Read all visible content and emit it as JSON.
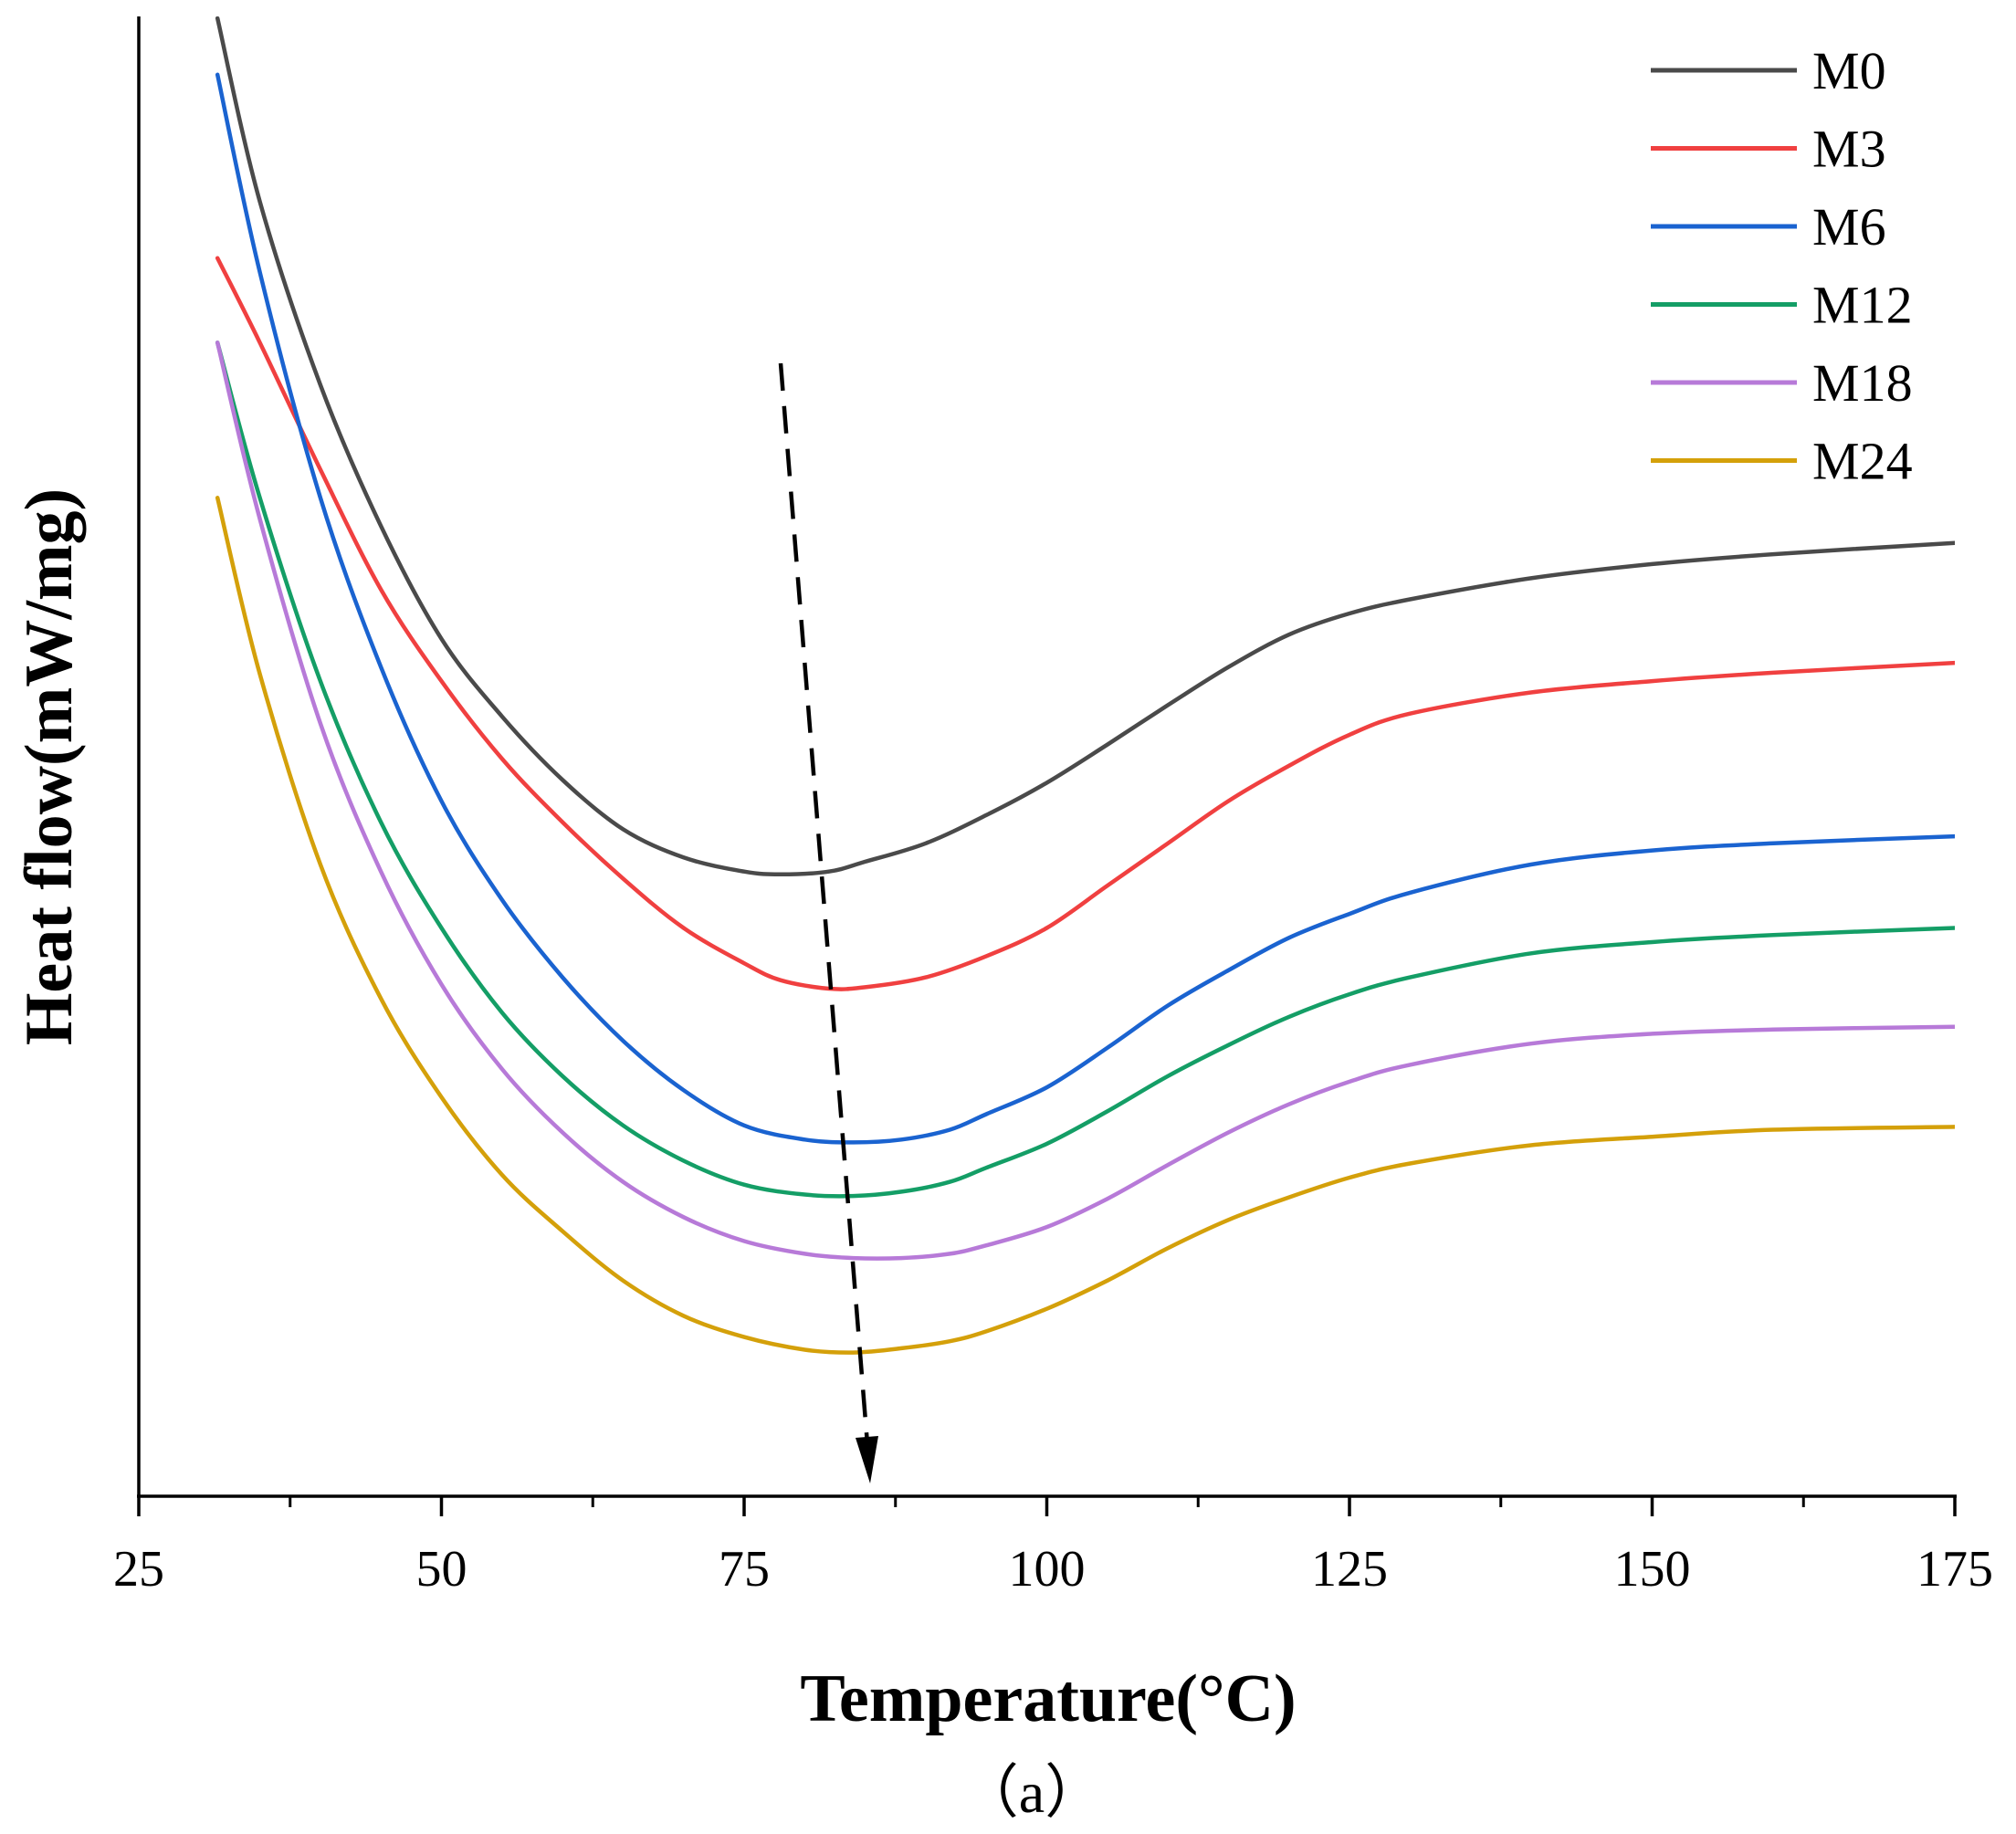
{
  "chart_data": {
    "type": "line",
    "title": "",
    "xlabel": "Temperature(°C)",
    "ylabel": "Heat flow(mW/mg)",
    "caption": "（a）",
    "xlim": [
      25,
      175
    ],
    "ylim": [
      0,
      100
    ],
    "xticks": [
      25,
      50,
      75,
      100,
      125,
      150,
      175
    ],
    "yticks": [],
    "grid": false,
    "legend_position": "top-right",
    "annotation": "dashed arrow pointing down-right through the curve minima",
    "series": [
      {
        "name": "M0",
        "color": "#4a4a4a",
        "x": [
          31.5,
          35,
          40,
          45,
          50,
          55,
          60,
          65,
          70,
          75,
          78,
          82,
          85,
          90,
          95,
          100,
          105,
          110,
          115,
          120,
          125,
          130,
          140,
          150,
          160,
          175
        ],
        "y": [
          100,
          87,
          74,
          64,
          56,
          50.5,
          46,
          42.5,
          40.5,
          39.5,
          39.3,
          39.5,
          40.2,
          41.5,
          43.5,
          45.8,
          48.5,
          51.3,
          54,
          56.3,
          57.8,
          58.8,
          60.3,
          61.3,
          62,
          62.8
        ]
      },
      {
        "name": "M3",
        "color": "#f04040",
        "x": [
          31.5,
          35,
          40,
          45,
          50,
          55,
          60,
          65,
          70,
          75,
          78,
          82,
          85,
          90,
          95,
          100,
          105,
          110,
          115,
          120,
          125,
          130,
          140,
          150,
          160,
          175
        ],
        "y": [
          83,
          77,
          68,
          59.5,
          53,
          47.5,
          43,
          39,
          35.5,
          33,
          31.8,
          31.2,
          31.3,
          32,
          33.5,
          35.5,
          38.5,
          41.5,
          44.5,
          47,
          49.2,
          50.7,
          52.2,
          53,
          53.6,
          54.3
        ]
      },
      {
        "name": "M6",
        "color": "#1a63d0",
        "x": [
          31.5,
          35,
          40,
          45,
          50,
          55,
          60,
          65,
          70,
          75,
          80,
          84,
          88,
          92,
          95,
          100,
          105,
          110,
          115,
          120,
          125,
          130,
          140,
          150,
          160,
          175
        ],
        "y": [
          96,
          82,
          66,
          54,
          44.5,
          37.5,
          32,
          27.5,
          24,
          21.5,
          20.5,
          20.3,
          20.5,
          21.2,
          22.3,
          24.2,
          27,
          30,
          32.5,
          34.8,
          36.5,
          38,
          40,
          41,
          41.5,
          42
        ]
      },
      {
        "name": "M12",
        "color": "#149e66",
        "x": [
          31.5,
          35,
          40,
          45,
          50,
          55,
          60,
          65,
          70,
          75,
          80,
          84,
          88,
          92,
          95,
          100,
          105,
          110,
          115,
          120,
          125,
          130,
          140,
          150,
          160,
          175
        ],
        "y": [
          77,
          66,
          53,
          43,
          35.5,
          29.5,
          25,
          21.5,
          19,
          17.3,
          16.6,
          16.5,
          16.8,
          17.5,
          18.5,
          20.2,
          22.5,
          25,
          27.2,
          29.2,
          30.8,
          32,
          33.7,
          34.5,
          35,
          35.5
        ]
      },
      {
        "name": "M18",
        "color": "#b77ad8",
        "x": [
          31.5,
          35,
          40,
          45,
          50,
          55,
          60,
          65,
          70,
          75,
          80,
          84,
          88,
          92,
          95,
          100,
          105,
          110,
          115,
          120,
          125,
          130,
          140,
          150,
          160,
          175
        ],
        "y": [
          77,
          64.5,
          50,
          39.5,
          31.5,
          25.5,
          21,
          17.5,
          15,
          13.3,
          12.4,
          12.1,
          12.1,
          12.4,
          13,
          14.3,
          16.3,
          18.7,
          21,
          23,
          24.6,
          25.8,
          27.3,
          28,
          28.3,
          28.5
        ]
      },
      {
        "name": "M24",
        "color": "#d4a00a",
        "x": [
          31.5,
          35,
          40,
          45,
          50,
          55,
          60,
          65,
          70,
          75,
          80,
          84,
          88,
          92,
          95,
          100,
          105,
          110,
          115,
          120,
          125,
          130,
          140,
          150,
          160,
          175
        ],
        "y": [
          66,
          53.5,
          40,
          30.5,
          23.5,
          18,
          14,
          10.5,
          8,
          6.5,
          5.6,
          5.4,
          5.7,
          6.2,
          6.9,
          8.5,
          10.5,
          12.8,
          14.8,
          16.4,
          17.8,
          18.8,
          20.1,
          20.7,
          21.2,
          21.4
        ]
      }
    ]
  }
}
